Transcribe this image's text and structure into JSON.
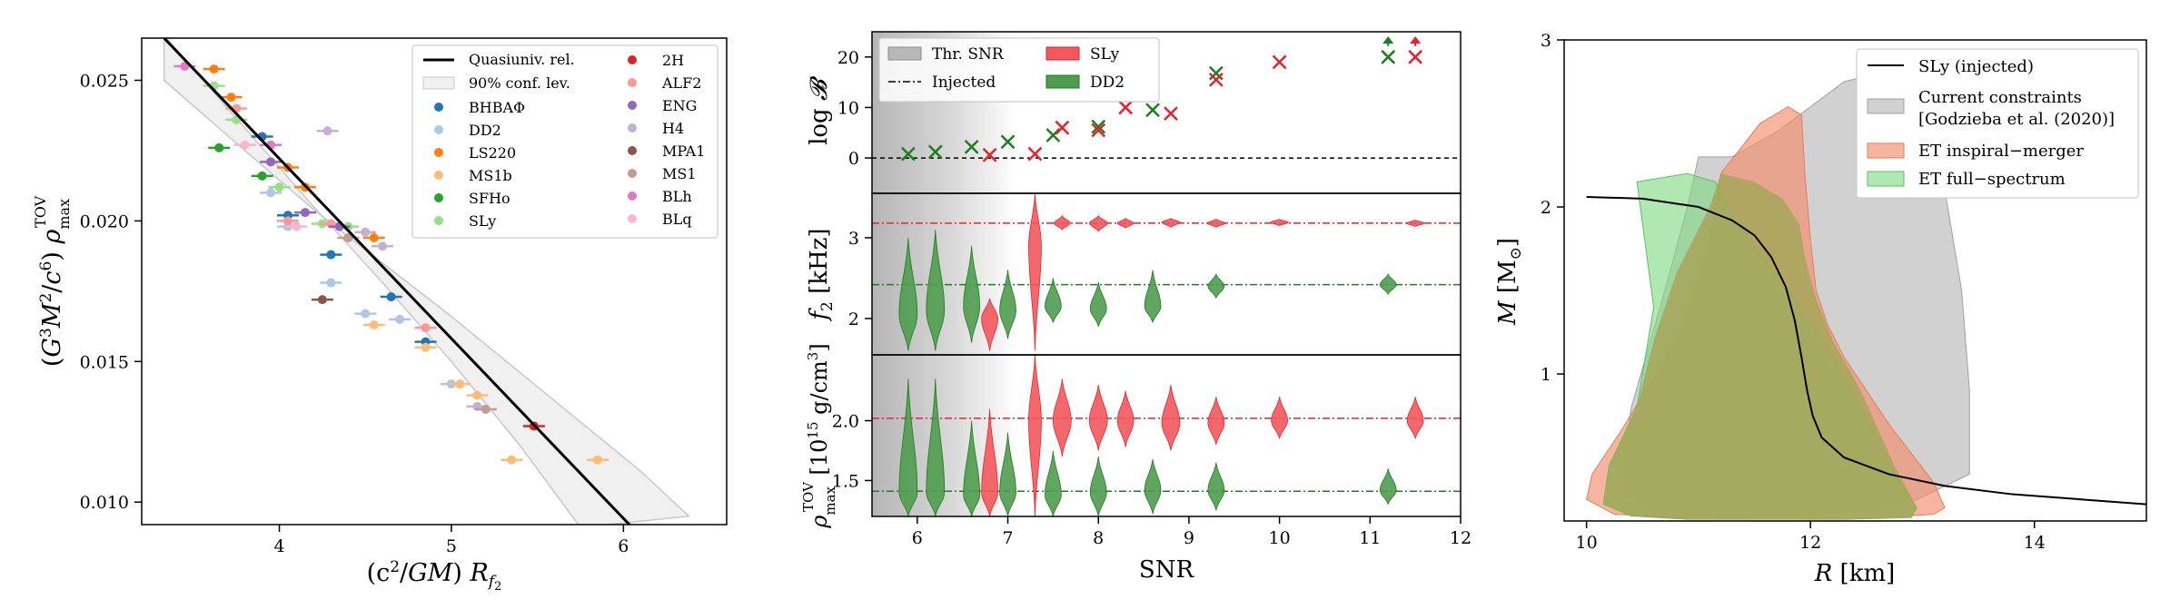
{
  "chart_data": [
    {
      "type": "scatter",
      "xlabel": "(c²/GM) R_f₂",
      "ylabel": "(G³M²/c⁶) ρ_max^TOV",
      "xlim": [
        3.2,
        6.6
      ],
      "ylim": [
        0.0092,
        0.0265
      ],
      "xticks": [
        4,
        5,
        6
      ],
      "xtick_labels": [
        "4",
        "5",
        "6"
      ],
      "yticks": [
        0.01,
        0.015,
        0.02,
        0.025
      ],
      "ytick_labels": [
        "0.010",
        "0.015",
        "0.020",
        "0.025"
      ],
      "legend_placement": "top-right",
      "fit_line": {
        "label": "Quasiuniv. rel.",
        "x": [
          3.33,
          6.05
        ],
        "y": [
          0.0265,
          0.0091
        ]
      },
      "band": {
        "label": "90% conf. lev.",
        "upper": {
          "x": [
            3.33,
            3.8,
            4.2,
            4.6,
            5.0,
            5.4,
            5.8,
            6.1,
            6.38
          ],
          "y": [
            0.025,
            0.0225,
            0.0204,
            0.0185,
            0.0166,
            0.0146,
            0.0126,
            0.0111,
            0.0095
          ]
        },
        "lower": {
          "x": [
            3.33,
            3.8,
            4.2,
            4.6,
            5.0,
            5.4,
            5.75
          ],
          "y": [
            0.0266,
            0.0233,
            0.0205,
            0.0178,
            0.015,
            0.012,
            0.0091
          ]
        }
      },
      "series": [
        {
          "name": "BHBAΦ",
          "color": "#1f77b4",
          "points": [
            [
              3.9,
              0.023
            ],
            [
              4.05,
              0.0202
            ],
            [
              4.3,
              0.0188
            ],
            [
              4.65,
              0.0173
            ],
            [
              4.85,
              0.0157
            ]
          ]
        },
        {
          "name": "DD2",
          "color": "#aec7e8",
          "points": [
            [
              3.95,
              0.021
            ],
            [
              4.05,
              0.0198
            ],
            [
              4.3,
              0.0178
            ],
            [
              4.5,
              0.0167
            ],
            [
              4.7,
              0.0165
            ],
            [
              5.0,
              0.0142
            ]
          ]
        },
        {
          "name": "LS220",
          "color": "#ff7f0e",
          "points": [
            [
              3.62,
              0.0254
            ],
            [
              3.72,
              0.0244
            ],
            [
              4.05,
              0.0219
            ],
            [
              4.15,
              0.0212
            ],
            [
              4.55,
              0.0194
            ]
          ]
        },
        {
          "name": "MS1b",
          "color": "#ffbb78",
          "points": [
            [
              4.55,
              0.0163
            ],
            [
              4.85,
              0.0155
            ],
            [
              5.05,
              0.0142
            ],
            [
              5.15,
              0.0138
            ],
            [
              5.35,
              0.0115
            ],
            [
              5.85,
              0.0115
            ]
          ]
        },
        {
          "name": "SFHo",
          "color": "#2ca02c",
          "points": [
            [
              3.65,
              0.0226
            ],
            [
              3.9,
              0.0216
            ]
          ]
        },
        {
          "name": "SLy",
          "color": "#98df8a",
          "points": [
            [
              3.62,
              0.0248
            ],
            [
              3.75,
              0.0236
            ],
            [
              4.0,
              0.0212
            ],
            [
              4.25,
              0.0199
            ],
            [
              4.4,
              0.0198
            ]
          ]
        },
        {
          "name": "2H",
          "color": "#d62728",
          "points": [
            [
              5.48,
              0.0127
            ]
          ]
        },
        {
          "name": "ALF2",
          "color": "#ff9896",
          "points": [
            [
              3.75,
              0.024
            ],
            [
              4.05,
              0.02
            ],
            [
              4.3,
              0.0199
            ],
            [
              4.85,
              0.0162
            ]
          ]
        },
        {
          "name": "ENG",
          "color": "#9467bd",
          "points": [
            [
              3.95,
              0.0221
            ],
            [
              4.15,
              0.0203
            ],
            [
              4.35,
              0.0198
            ]
          ]
        },
        {
          "name": "H4",
          "color": "#c5b0d5",
          "points": [
            [
              4.28,
              0.0232
            ],
            [
              4.5,
              0.0196
            ],
            [
              4.6,
              0.0191
            ],
            [
              5.15,
              0.0134
            ]
          ]
        },
        {
          "name": "MPA1",
          "color": "#8c564b",
          "points": [
            [
              4.25,
              0.0172
            ]
          ]
        },
        {
          "name": "MS1",
          "color": "#c49c94",
          "points": [
            [
              4.4,
              0.0194
            ],
            [
              5.2,
              0.0133
            ]
          ]
        },
        {
          "name": "BLh",
          "color": "#e377c2",
          "points": [
            [
              3.45,
              0.0255
            ],
            [
              3.95,
              0.0227
            ]
          ]
        },
        {
          "name": "BLq",
          "color": "#f7b6d2",
          "points": [
            [
              3.8,
              0.0227
            ],
            [
              4.1,
              0.0198
            ]
          ]
        }
      ]
    },
    {
      "type": "scatter",
      "xlabel": "SNR",
      "xlim": [
        5.5,
        12
      ],
      "xticks": [
        6,
        7,
        8,
        9,
        10,
        11,
        12
      ],
      "xtick_labels": [
        "6",
        "7",
        "8",
        "9",
        "10",
        "11",
        "12"
      ],
      "legend_placement": "top-left",
      "legend": {
        "threshold": "Thr. SNR",
        "injected": "Injected",
        "sly": "SLy",
        "dd2": "DD2"
      },
      "colors": {
        "sly": "#e8222b",
        "dd2": "#1e7d1e",
        "sly_violin": "#f2585c",
        "dd2_violin": "#4f9b4f"
      },
      "panels": [
        {
          "ylabel": "log 𝓑",
          "ylim": [
            -7,
            25
          ],
          "yticks": [
            0,
            10,
            20
          ],
          "ytick_labels": [
            "0",
            "10",
            "20"
          ],
          "injected": 0,
          "sly_x": [
            6.8,
            7.3,
            7.6,
            8.0,
            8.3,
            8.8,
            9.3,
            10.0,
            11.5
          ],
          "sly_y": [
            0.6,
            0.8,
            6.0,
            5.5,
            10.0,
            8.8,
            15.5,
            19.0,
            20.0
          ],
          "dd2_x": [
            5.9,
            6.2,
            6.6,
            7.0,
            7.5,
            8.0,
            8.6,
            9.3,
            11.2
          ],
          "dd2_y": [
            0.8,
            1.2,
            2.2,
            3.2,
            4.5,
            6.2,
            9.5,
            16.8,
            20.0
          ],
          "arrows": [
            {
              "x": 11.2,
              "series": "dd2"
            },
            {
              "x": 11.5,
              "series": "sly"
            }
          ]
        },
        {
          "ylabel": "f₂ [kHz]",
          "ylim": [
            1.55,
            3.55
          ],
          "yticks": [
            2,
            3
          ],
          "ytick_labels": [
            "2",
            "3"
          ],
          "injected_sly": 3.18,
          "injected_dd2": 2.42,
          "violins_sly": [
            {
              "x": 6.8,
              "center": 2.0,
              "lo": 1.6,
              "hi": 2.25,
              "w": 0.09
            },
            {
              "x": 7.3,
              "center": 2.9,
              "lo": 1.6,
              "hi": 3.55,
              "w": 0.07
            },
            {
              "x": 7.6,
              "center": 3.18,
              "lo": 3.1,
              "hi": 3.27,
              "w": 0.09
            },
            {
              "x": 8.0,
              "center": 3.18,
              "lo": 3.08,
              "hi": 3.27,
              "w": 0.1
            },
            {
              "x": 8.3,
              "center": 3.18,
              "lo": 3.12,
              "hi": 3.24,
              "w": 0.09
            },
            {
              "x": 8.8,
              "center": 3.19,
              "lo": 3.13,
              "hi": 3.24,
              "w": 0.1
            },
            {
              "x": 9.3,
              "center": 3.18,
              "lo": 3.13,
              "hi": 3.23,
              "w": 0.1
            },
            {
              "x": 10.0,
              "center": 3.19,
              "lo": 3.15,
              "hi": 3.23,
              "w": 0.1
            },
            {
              "x": 11.5,
              "center": 3.18,
              "lo": 3.14,
              "hi": 3.22,
              "w": 0.1
            }
          ],
          "violins_dd2": [
            {
              "x": 5.9,
              "center": 2.05,
              "lo": 1.6,
              "hi": 3.0,
              "w": 0.1
            },
            {
              "x": 6.2,
              "center": 2.1,
              "lo": 1.6,
              "hi": 3.1,
              "w": 0.1
            },
            {
              "x": 6.6,
              "center": 2.15,
              "lo": 1.7,
              "hi": 2.9,
              "w": 0.09
            },
            {
              "x": 7.0,
              "center": 2.1,
              "lo": 1.75,
              "hi": 2.6,
              "w": 0.09
            },
            {
              "x": 7.5,
              "center": 2.15,
              "lo": 1.95,
              "hi": 2.5,
              "w": 0.09
            },
            {
              "x": 8.0,
              "center": 2.12,
              "lo": 1.9,
              "hi": 2.45,
              "w": 0.09
            },
            {
              "x": 8.6,
              "center": 2.15,
              "lo": 1.95,
              "hi": 2.6,
              "w": 0.09
            },
            {
              "x": 9.3,
              "center": 2.4,
              "lo": 2.25,
              "hi": 2.55,
              "w": 0.09
            },
            {
              "x": 11.2,
              "center": 2.42,
              "lo": 2.3,
              "hi": 2.55,
              "w": 0.09
            }
          ]
        },
        {
          "ylabel": "ρ_max^TOV [10¹⁵ g/cm³]",
          "ylim": [
            1.2,
            2.55
          ],
          "yticks": [
            1.5,
            2.0
          ],
          "ytick_labels": [
            "1.5",
            "2.0"
          ],
          "injected_sly": 2.02,
          "injected_dd2": 1.41,
          "violins_sly": [
            {
              "x": 6.8,
              "center": 1.4,
              "lo": 1.2,
              "hi": 2.1,
              "w": 0.09
            },
            {
              "x": 7.3,
              "center": 2.0,
              "lo": 1.2,
              "hi": 2.55,
              "w": 0.07
            },
            {
              "x": 7.6,
              "center": 2.0,
              "lo": 1.7,
              "hi": 2.35,
              "w": 0.1
            },
            {
              "x": 8.0,
              "center": 2.0,
              "lo": 1.75,
              "hi": 2.3,
              "w": 0.1
            },
            {
              "x": 8.3,
              "center": 2.0,
              "lo": 1.78,
              "hi": 2.25,
              "w": 0.09
            },
            {
              "x": 8.8,
              "center": 1.98,
              "lo": 1.75,
              "hi": 2.3,
              "w": 0.1
            },
            {
              "x": 9.3,
              "center": 1.98,
              "lo": 1.8,
              "hi": 2.2,
              "w": 0.09
            },
            {
              "x": 10.0,
              "center": 2.0,
              "lo": 1.85,
              "hi": 2.2,
              "w": 0.09
            },
            {
              "x": 11.5,
              "center": 2.0,
              "lo": 1.85,
              "hi": 2.2,
              "w": 0.09
            }
          ],
          "violins_dd2": [
            {
              "x": 5.9,
              "center": 1.4,
              "lo": 1.2,
              "hi": 2.35,
              "w": 0.1
            },
            {
              "x": 6.2,
              "center": 1.4,
              "lo": 1.2,
              "hi": 2.35,
              "w": 0.1
            },
            {
              "x": 6.6,
              "center": 1.38,
              "lo": 1.2,
              "hi": 2.0,
              "w": 0.09
            },
            {
              "x": 7.0,
              "center": 1.4,
              "lo": 1.2,
              "hi": 1.9,
              "w": 0.09
            },
            {
              "x": 7.5,
              "center": 1.38,
              "lo": 1.2,
              "hi": 1.75,
              "w": 0.09
            },
            {
              "x": 8.0,
              "center": 1.4,
              "lo": 1.2,
              "hi": 1.7,
              "w": 0.09
            },
            {
              "x": 8.6,
              "center": 1.42,
              "lo": 1.22,
              "hi": 1.68,
              "w": 0.09
            },
            {
              "x": 9.3,
              "center": 1.42,
              "lo": 1.25,
              "hi": 1.65,
              "w": 0.09
            },
            {
              "x": 11.2,
              "center": 1.42,
              "lo": 1.3,
              "hi": 1.6,
              "w": 0.09
            }
          ]
        }
      ]
    },
    {
      "type": "area",
      "xlabel": "R [km]",
      "ylabel": "M [M☉]",
      "xlim": [
        9.8,
        15
      ],
      "ylim": [
        0.12,
        3.0
      ],
      "xticks": [
        10,
        12,
        14
      ],
      "xtick_labels": [
        "10",
        "12",
        "14"
      ],
      "yticks": [
        1,
        2,
        3
      ],
      "ytick_labels": [
        "1",
        "2",
        "3"
      ],
      "legend_placement": "top-right",
      "legend": {
        "injected": "SLy (injected)",
        "current": "Current constraints",
        "current_ref": "[Godzieba et al. (2020)]",
        "inspiral": "ET inspiral−merger",
        "full": "ET full−spectrum"
      },
      "colors": {
        "gray": "#b3b3b3",
        "salmon": "#f28e6b",
        "green": "#7dd87d",
        "olive": "#a6a65a"
      },
      "sly_curve": {
        "R": [
          10.0,
          10.5,
          11.0,
          11.3,
          11.5,
          11.65,
          11.78,
          11.86,
          11.92,
          11.97,
          12.02,
          12.1,
          12.3,
          12.7,
          13.2,
          13.8,
          14.4,
          15.0
        ],
        "M": [
          2.06,
          2.05,
          2.0,
          1.92,
          1.83,
          1.7,
          1.52,
          1.32,
          1.1,
          0.9,
          0.75,
          0.62,
          0.5,
          0.4,
          0.33,
          0.28,
          0.25,
          0.22
        ]
      },
      "region_gray": {
        "R": [
          11.0,
          11.3,
          11.7,
          12.0,
          12.3,
          12.6,
          12.9,
          13.2,
          13.35,
          13.42,
          13.42,
          12.8,
          12.0,
          11.2,
          10.6,
          10.3,
          10.4,
          10.7,
          10.9,
          11.0
        ],
        "M": [
          2.3,
          2.3,
          2.45,
          2.6,
          2.75,
          2.8,
          2.55,
          2.1,
          1.5,
          0.9,
          0.4,
          0.2,
          0.16,
          0.15,
          0.18,
          0.3,
          0.8,
          1.5,
          2.0,
          2.3
        ]
      },
      "region_salmon": {
        "R": [
          11.2,
          11.55,
          11.8,
          11.92,
          11.95,
          12.0,
          12.05,
          12.15,
          12.3,
          12.5,
          12.7,
          13.1,
          13.2,
          13.1,
          12.6,
          11.8,
          10.9,
          10.25,
          10.0,
          10.05,
          10.3,
          10.8,
          11.1,
          11.2
        ],
        "M": [
          2.2,
          2.5,
          2.6,
          2.55,
          2.2,
          1.8,
          1.5,
          1.3,
          1.1,
          0.9,
          0.7,
          0.35,
          0.2,
          0.16,
          0.14,
          0.14,
          0.14,
          0.16,
          0.25,
          0.4,
          0.65,
          1.2,
          1.8,
          2.2
        ]
      },
      "region_green": {
        "R": [
          10.45,
          10.9,
          11.15,
          11.3,
          11.5,
          11.7,
          11.85,
          12.0,
          12.2,
          12.45,
          12.75,
          12.95,
          12.9,
          12.3,
          11.5,
          10.9,
          10.4,
          10.15,
          10.2,
          10.45,
          10.6,
          10.5,
          10.45
        ],
        "M": [
          2.15,
          2.2,
          2.15,
          1.95,
          1.75,
          1.6,
          1.45,
          1.3,
          1.1,
          0.8,
          0.4,
          0.2,
          0.14,
          0.13,
          0.13,
          0.13,
          0.15,
          0.22,
          0.45,
          0.8,
          1.4,
          1.9,
          2.15
        ]
      },
      "region_olive": {
        "R": [
          11.2,
          11.5,
          11.75,
          11.9,
          11.95,
          12.05,
          12.2,
          12.45,
          12.75,
          12.95,
          12.9,
          12.3,
          11.5,
          10.9,
          10.4,
          10.15,
          10.2,
          10.45,
          10.6,
          10.8,
          11.1,
          11.2
        ],
        "M": [
          2.2,
          2.15,
          2.05,
          1.9,
          1.7,
          1.45,
          1.2,
          0.9,
          0.45,
          0.2,
          0.14,
          0.13,
          0.13,
          0.13,
          0.15,
          0.22,
          0.45,
          0.8,
          1.2,
          1.6,
          2.0,
          2.2
        ]
      }
    }
  ]
}
